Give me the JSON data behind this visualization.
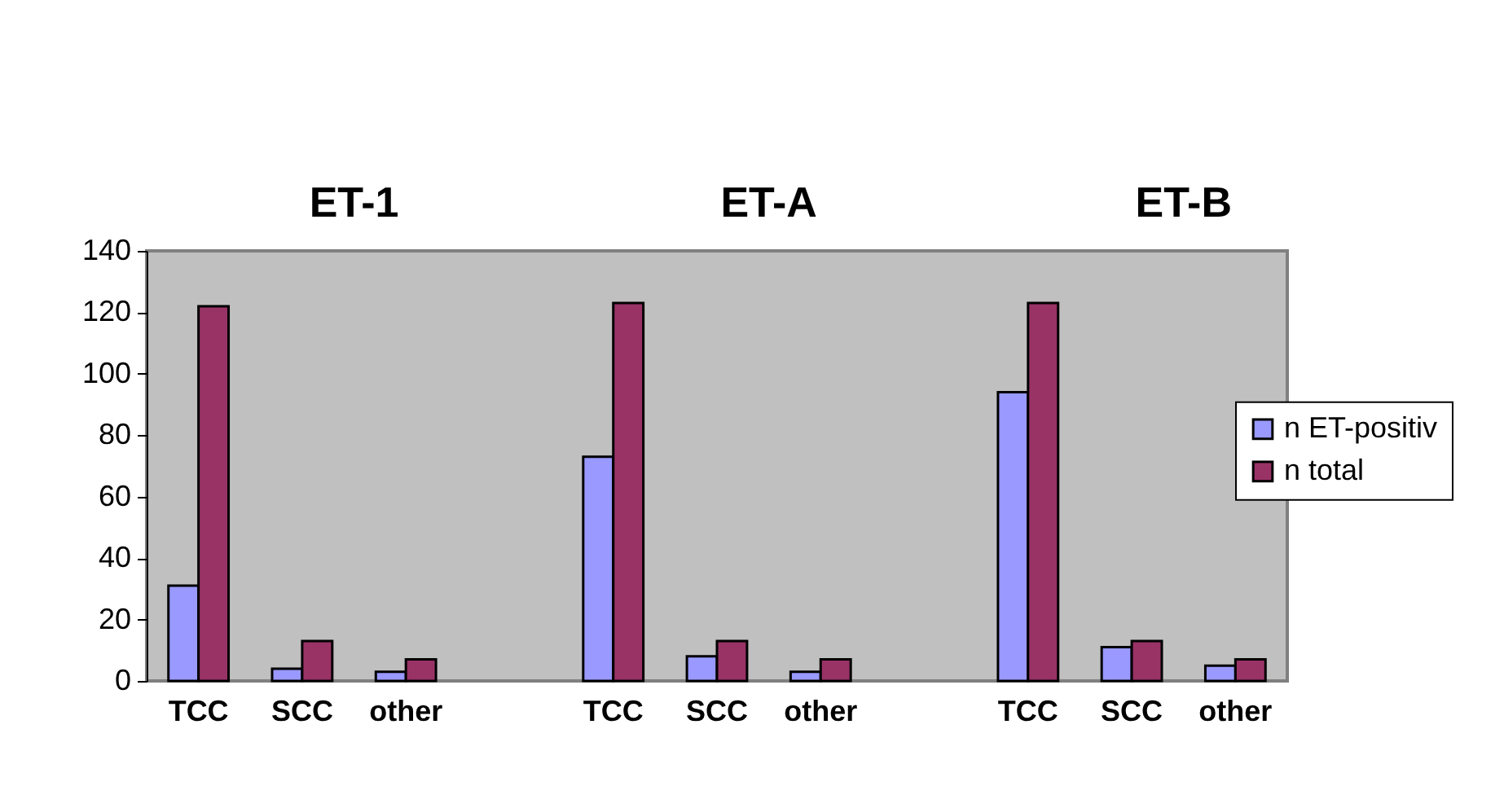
{
  "chart_data": {
    "type": "bar",
    "categories": [
      "TCC",
      "SCC",
      "other",
      null,
      "TCC",
      "SCC",
      "other",
      null,
      "TCC",
      "SCC",
      "other"
    ],
    "series": [
      {
        "name": "n ET-positiv",
        "color": "#9999ff",
        "values": [
          31,
          4,
          3,
          null,
          73,
          8,
          3,
          null,
          94,
          11,
          5
        ]
      },
      {
        "name": "n total",
        "color": "#993366",
        "values": [
          122,
          13,
          7,
          null,
          123,
          13,
          7,
          null,
          123,
          13,
          7
        ]
      }
    ],
    "ylim": [
      0,
      140
    ],
    "yticks": [
      0,
      20,
      40,
      60,
      80,
      100,
      120,
      140
    ],
    "legend": "right",
    "annotations": [
      "ET-1",
      "ET-A",
      "ET-B"
    ]
  }
}
